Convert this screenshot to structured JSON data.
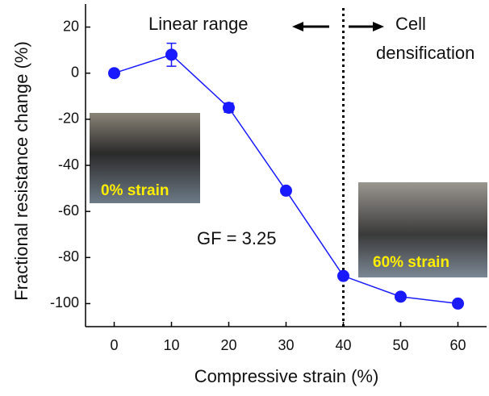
{
  "chart_data": {
    "type": "line",
    "x_label": "Compressive strain (%)",
    "y_label": "Fractional resistance change (%)",
    "x": [
      0,
      10,
      20,
      30,
      40,
      50,
      60
    ],
    "series": [
      {
        "color": "#1a1aff",
        "values": [
          0,
          8,
          -15,
          -51,
          -88,
          -97,
          -100
        ],
        "errors": [
          null,
          5,
          2,
          null,
          null,
          null,
          null
        ]
      }
    ],
    "xlim": [
      -5,
      65
    ],
    "xticks": [
      0,
      10,
      20,
      30,
      40,
      50,
      60
    ],
    "ylim": [
      -110,
      30
    ],
    "yticks": [
      20,
      0,
      -20,
      -40,
      -60,
      -80,
      -100
    ],
    "vline": 40,
    "annotations": [
      "Linear range",
      "Cell",
      "densification",
      "GF = 3.25"
    ],
    "inset_labels": [
      "0% strain",
      "60% strain"
    ]
  }
}
